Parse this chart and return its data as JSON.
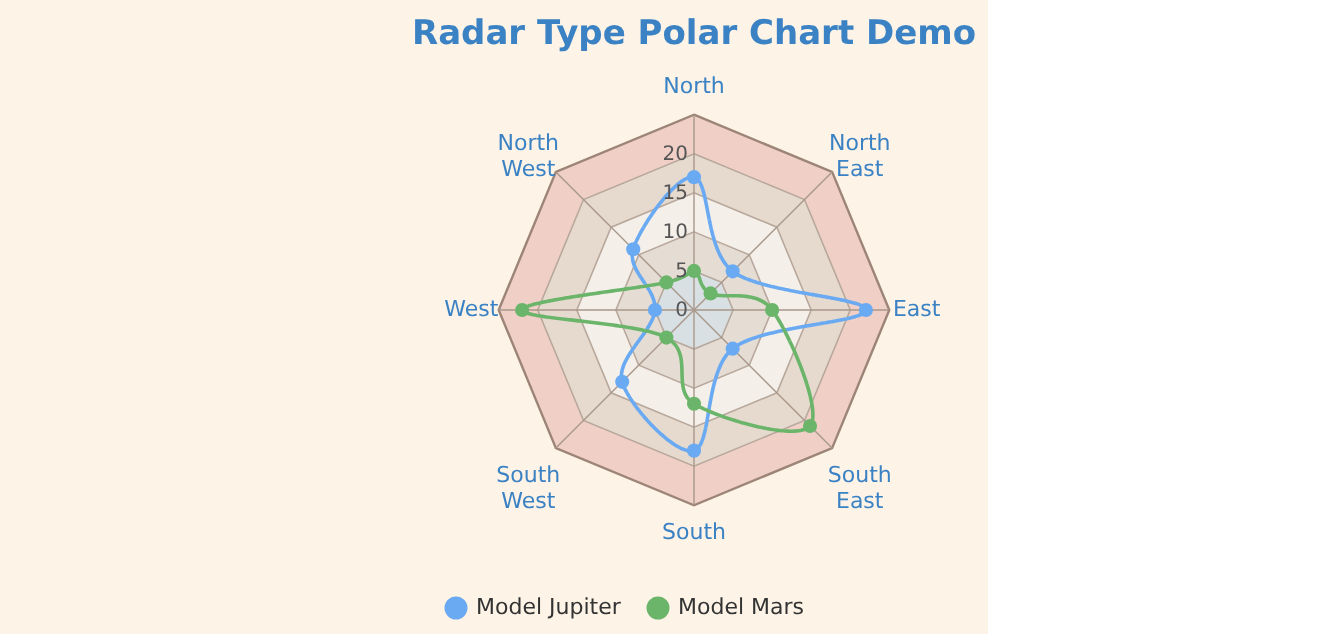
{
  "chart_data": {
    "type": "radar",
    "title": "Radar Type Polar Chart Demo",
    "categories": [
      "North",
      "North East",
      "East",
      "South East",
      "South",
      "South West",
      "West",
      "North West"
    ],
    "series": [
      {
        "name": "Model Jupiter",
        "color": "#6aaaf2",
        "values": [
          17,
          7,
          22,
          7,
          18,
          13,
          5,
          11
        ]
      },
      {
        "name": "Model Mars",
        "color": "#6bb56b",
        "values": [
          5,
          3,
          10,
          21,
          12,
          5,
          22,
          5
        ]
      }
    ],
    "ylim": [
      0,
      25
    ],
    "yticks": [
      0,
      5,
      10,
      15,
      20
    ],
    "grid": true,
    "legend": "bottom",
    "marker": "circle",
    "line_style": "solid"
  }
}
